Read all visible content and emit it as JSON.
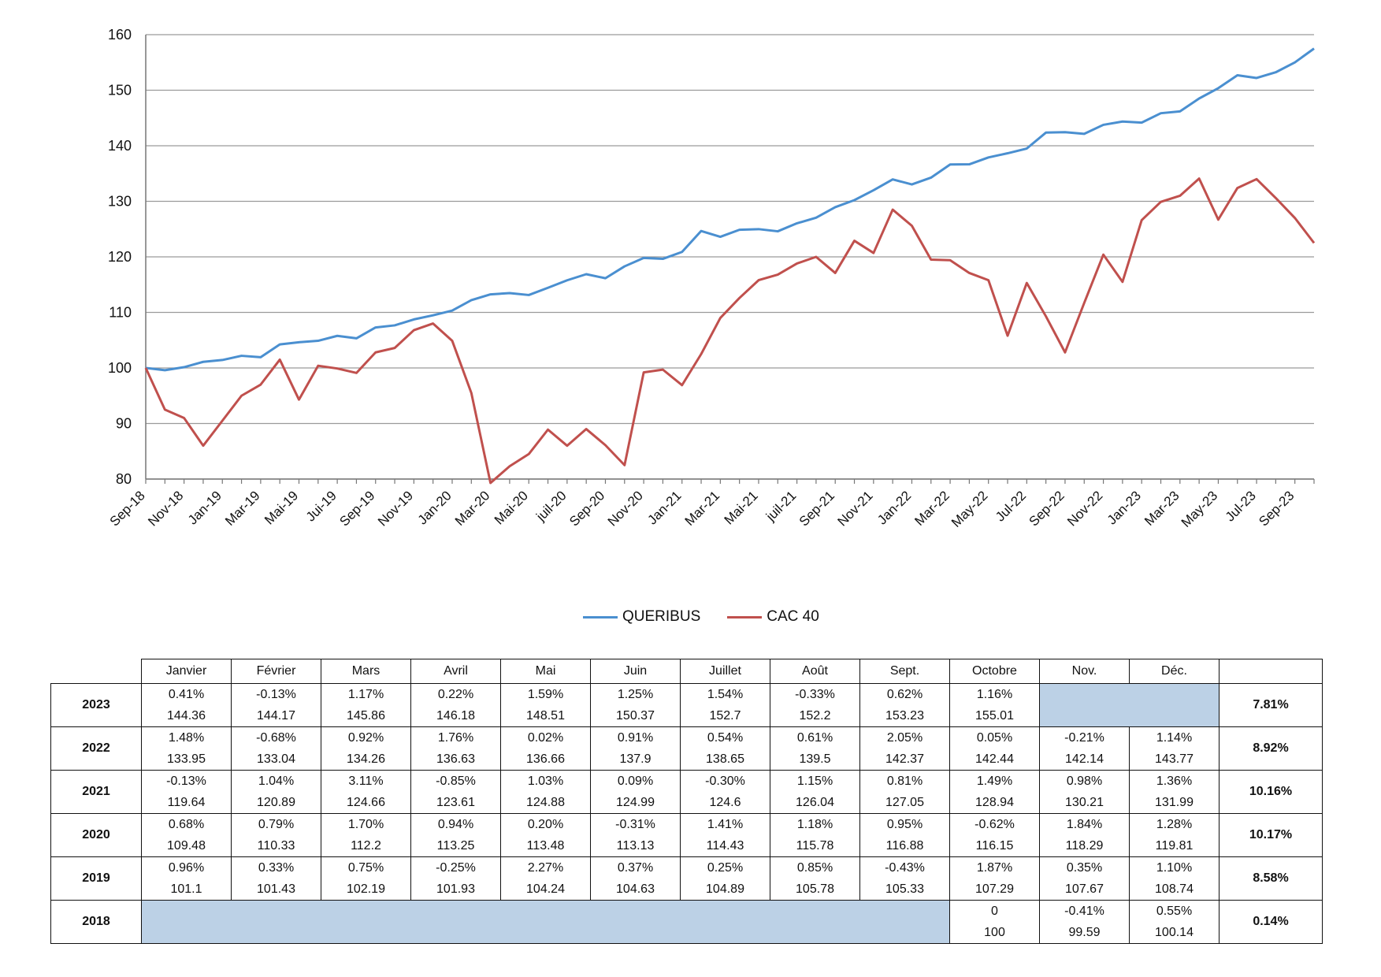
{
  "chart_data": {
    "type": "line",
    "ylim": [
      80,
      160
    ],
    "yticks": [
      80,
      90,
      100,
      110,
      120,
      130,
      140,
      150,
      160
    ],
    "grid": true,
    "legend_position": "bottom",
    "x": [
      "Sep-18",
      "Oct-18",
      "Nov-18",
      "Dec-18",
      "Jan-19",
      "Feb-19",
      "Mar-19",
      "Apr-19",
      "Mai-19",
      "Jun-19",
      "Jui-19",
      "Aug-19",
      "Sep-19",
      "Oct-19",
      "Nov-19",
      "Dec-19",
      "Jan-20",
      "Feb-20",
      "Mar-20",
      "Apr-20",
      "Mai-20",
      "Jun-20",
      "juil-20",
      "Aug-20",
      "Sep-20",
      "Oct-20",
      "Nov-20",
      "Dec-20",
      "Jan-21",
      "Feb-21",
      "Mar-21",
      "Apr-21",
      "Mai-21",
      "Jun-21",
      "juil-21",
      "Aug-21",
      "Sep-21",
      "Oct-21",
      "Nov-21",
      "Dec-21",
      "Jan-22",
      "Feb-22",
      "Mar-22",
      "Apr-22",
      "May-22",
      "Jun-22",
      "Jul-22",
      "Aug-22",
      "Sep-22",
      "Oct-22",
      "Nov-22",
      "Dec-22",
      "Jan-23",
      "Feb-23",
      "Mar-23",
      "Apr-23",
      "May-23",
      "Jun-23",
      "Jul-23",
      "Aug-23",
      "Sep-23",
      "Oct-23"
    ],
    "x_tick_labels": [
      "Sep-18",
      "Nov-18",
      "Jan-19",
      "Mar-19",
      "Mai-19",
      "Jui-19",
      "Sep-19",
      "Nov-19",
      "Jan-20",
      "Mar-20",
      "Mai-20",
      "juil-20",
      "Sep-20",
      "Nov-20",
      "Jan-21",
      "Mar-21",
      "Mai-21",
      "juil-21",
      "Sep-21",
      "Nov-21",
      "Jan-22",
      "Mar-22",
      "May-22",
      "Jul-22",
      "Sep-22",
      "Nov-22",
      "Jan-23",
      "Mar-23",
      "May-23",
      "Jul-23",
      "Sep-23"
    ],
    "series": [
      {
        "name": "QUERIBUS",
        "color": "#4a8fd0",
        "values": [
          100,
          99.59,
          100.14,
          101.1,
          101.43,
          102.19,
          101.93,
          104.24,
          104.63,
          104.89,
          105.78,
          105.33,
          107.29,
          107.67,
          108.74,
          109.48,
          110.33,
          112.2,
          113.25,
          113.48,
          113.13,
          114.43,
          115.78,
          116.88,
          116.15,
          118.29,
          119.81,
          119.64,
          120.89,
          124.66,
          123.61,
          124.88,
          124.99,
          124.6,
          126.04,
          127.05,
          128.94,
          130.21,
          131.99,
          133.95,
          133.04,
          134.26,
          136.63,
          136.66,
          137.9,
          138.65,
          139.5,
          142.37,
          142.44,
          142.14,
          143.77,
          144.36,
          144.17,
          145.86,
          146.18,
          148.51,
          150.37,
          152.7,
          152.2,
          153.23,
          155.01,
          157.5
        ]
      },
      {
        "name": "CAC 40",
        "color": "#c0504d",
        "values": [
          100,
          92.5,
          91,
          86,
          90.5,
          95,
          97,
          101.5,
          94.3,
          100.4,
          99.9,
          99.1,
          102.8,
          103.6,
          106.8,
          108,
          104.9,
          95.5,
          79.3,
          82.3,
          84.5,
          88.9,
          86,
          89,
          86.1,
          82.5,
          99.2,
          99.7,
          96.9,
          102.5,
          109,
          112.6,
          115.8,
          116.8,
          118.8,
          120,
          117.1,
          122.9,
          120.7,
          128.5,
          125.6,
          119.5,
          119.4,
          117.1,
          115.8,
          105.8,
          115.3,
          109.3,
          102.8,
          111.7,
          120.4,
          115.5,
          126.6,
          129.9,
          131,
          134.1,
          126.7,
          132.4,
          134,
          130.6,
          127,
          122.5
        ]
      }
    ]
  },
  "legend": [
    {
      "name": "QUERIBUS",
      "color": "#4a8fd0"
    },
    {
      "name": "CAC 40",
      "color": "#c0504d"
    }
  ],
  "table": {
    "months": [
      "Janvier",
      "Février",
      "Mars",
      "Avril",
      "Mai",
      "Juin",
      "Juillet",
      "Août",
      "Sept.",
      "Octobre",
      "Nov.",
      "Déc."
    ],
    "rows": [
      {
        "year": "2023",
        "cells": [
          [
            "0.41%",
            "144.36"
          ],
          [
            "-0.13%",
            "144.17"
          ],
          [
            "1.17%",
            "145.86"
          ],
          [
            "0.22%",
            "146.18"
          ],
          [
            "1.59%",
            "148.51"
          ],
          [
            "1.25%",
            "150.37"
          ],
          [
            "1.54%",
            "152.7"
          ],
          [
            "-0.33%",
            "152.2"
          ],
          [
            "0.62%",
            "153.23"
          ],
          [
            "1.16%",
            "155.01"
          ],
          null,
          null
        ],
        "total": "7.81%"
      },
      {
        "year": "2022",
        "cells": [
          [
            "1.48%",
            "133.95"
          ],
          [
            "-0.68%",
            "133.04"
          ],
          [
            "0.92%",
            "134.26"
          ],
          [
            "1.76%",
            "136.63"
          ],
          [
            "0.02%",
            "136.66"
          ],
          [
            "0.91%",
            "137.9"
          ],
          [
            "0.54%",
            "138.65"
          ],
          [
            "0.61%",
            "139.5"
          ],
          [
            "2.05%",
            "142.37"
          ],
          [
            "0.05%",
            "142.44"
          ],
          [
            "-0.21%",
            "142.14"
          ],
          [
            "1.14%",
            "143.77"
          ]
        ],
        "total": "8.92%"
      },
      {
        "year": "2021",
        "cells": [
          [
            "-0.13%",
            "119.64"
          ],
          [
            "1.04%",
            "120.89"
          ],
          [
            "3.11%",
            "124.66"
          ],
          [
            "-0.85%",
            "123.61"
          ],
          [
            "1.03%",
            "124.88"
          ],
          [
            "0.09%",
            "124.99"
          ],
          [
            "-0.30%",
            "124.6"
          ],
          [
            "1.15%",
            "126.04"
          ],
          [
            "0.81%",
            "127.05"
          ],
          [
            "1.49%",
            "128.94"
          ],
          [
            "0.98%",
            "130.21"
          ],
          [
            "1.36%",
            "131.99"
          ]
        ],
        "total": "10.16%"
      },
      {
        "year": "2020",
        "cells": [
          [
            "0.68%",
            "109.48"
          ],
          [
            "0.79%",
            "110.33"
          ],
          [
            "1.70%",
            "112.2"
          ],
          [
            "0.94%",
            "113.25"
          ],
          [
            "0.20%",
            "113.48"
          ],
          [
            "-0.31%",
            "113.13"
          ],
          [
            "1.41%",
            "114.43"
          ],
          [
            "1.18%",
            "115.78"
          ],
          [
            "0.95%",
            "116.88"
          ],
          [
            "-0.62%",
            "116.15"
          ],
          [
            "1.84%",
            "118.29"
          ],
          [
            "1.28%",
            "119.81"
          ]
        ],
        "total": "10.17%"
      },
      {
        "year": "2019",
        "cells": [
          [
            "0.96%",
            "101.1"
          ],
          [
            "0.33%",
            "101.43"
          ],
          [
            "0.75%",
            "102.19"
          ],
          [
            "-0.25%",
            "101.93"
          ],
          [
            "2.27%",
            "104.24"
          ],
          [
            "0.37%",
            "104.63"
          ],
          [
            "0.25%",
            "104.89"
          ],
          [
            "0.85%",
            "105.78"
          ],
          [
            "-0.43%",
            "105.33"
          ],
          [
            "1.87%",
            "107.29"
          ],
          [
            "0.35%",
            "107.67"
          ],
          [
            "1.10%",
            "108.74"
          ]
        ],
        "total": "8.58%"
      },
      {
        "year": "2018",
        "cells": [
          null,
          null,
          null,
          null,
          null,
          null,
          null,
          null,
          null,
          [
            "0",
            "100"
          ],
          [
            "-0.41%",
            "99.59"
          ],
          [
            "0.55%",
            "100.14"
          ]
        ],
        "total": "0.14%"
      }
    ]
  }
}
